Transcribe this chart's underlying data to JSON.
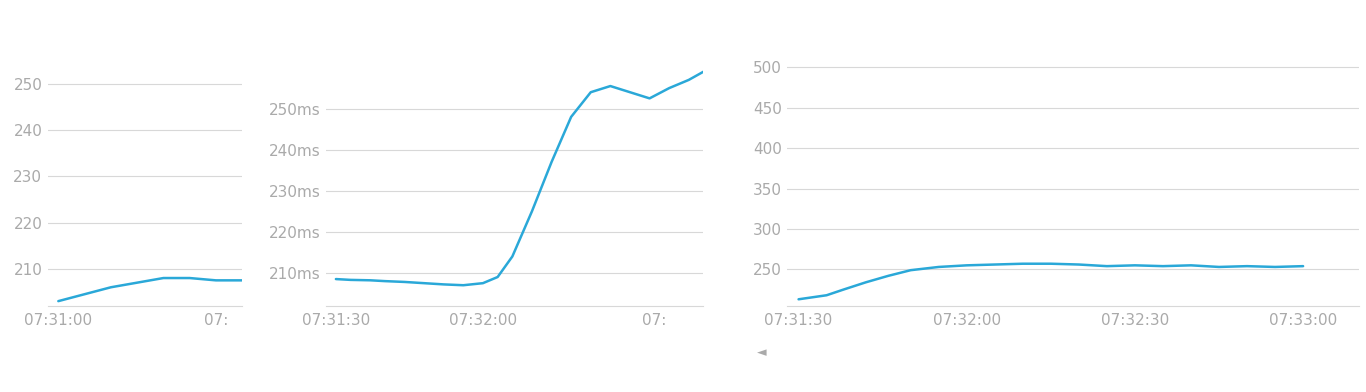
{
  "charts": [
    {
      "yticks": [
        210,
        220,
        230,
        240,
        250
      ],
      "ytick_labels": [
        "210",
        "220",
        "230",
        "240",
        "250"
      ],
      "xtick_labels": [
        "07:31:00",
        "07:"
      ],
      "xtick_positions": [
        0,
        30
      ],
      "xlim": [
        -2,
        35
      ],
      "ylim": [
        202,
        258
      ],
      "line_x": [
        0,
        5,
        10,
        15,
        20,
        25,
        30,
        35
      ],
      "line_y": [
        203,
        204.5,
        206,
        207,
        208,
        208,
        207.5,
        207.5
      ],
      "line_color": "#2aa8d8"
    },
    {
      "yticks": [
        210,
        220,
        230,
        240,
        250
      ],
      "ytick_labels": [
        "210ms",
        "220ms",
        "230ms",
        "240ms",
        "250ms"
      ],
      "xtick_labels": [
        "07:31:30",
        "07:32:00",
        "07:"
      ],
      "xtick_positions": [
        0,
        30,
        65
      ],
      "xlim": [
        -2,
        75
      ],
      "ylim": [
        202,
        265
      ],
      "line_x": [
        0,
        3,
        7,
        10,
        14,
        18,
        22,
        26,
        30,
        33,
        36,
        40,
        44,
        48,
        52,
        56,
        60,
        64,
        68,
        72,
        75
      ],
      "line_y": [
        208.5,
        208.3,
        208.2,
        208,
        207.8,
        207.5,
        207.2,
        207.0,
        207.5,
        209,
        214,
        225,
        237,
        248,
        254,
        255.5,
        254,
        252.5,
        255,
        257,
        259
      ],
      "line_color": "#2aa8d8"
    },
    {
      "yticks": [
        250,
        300,
        350,
        400,
        450,
        500
      ],
      "ytick_labels": [
        "250",
        "300",
        "350",
        "400",
        "450",
        "500"
      ],
      "xtick_labels": [
        "07:31:30",
        "07:32:00",
        "07:32:30",
        "07:33:00"
      ],
      "xtick_positions": [
        0,
        30,
        60,
        90
      ],
      "xlim": [
        -2,
        100
      ],
      "ylim": [
        205,
        525
      ],
      "line_x": [
        0,
        5,
        8,
        12,
        16,
        20,
        25,
        30,
        35,
        40,
        45,
        50,
        55,
        60,
        65,
        70,
        75,
        80,
        85,
        90
      ],
      "line_y": [
        213,
        218,
        225,
        234,
        242,
        249,
        253,
        255,
        256,
        257,
        257,
        256,
        254,
        255,
        254,
        255,
        253,
        254,
        253,
        254
      ],
      "line_color": "#2aa8d8",
      "has_left_arrow": true
    }
  ],
  "bg_color": "#ffffff",
  "grid_color": "#d8d8d8",
  "tick_fontsize": 11,
  "tick_font_color": "#aaaaaa"
}
